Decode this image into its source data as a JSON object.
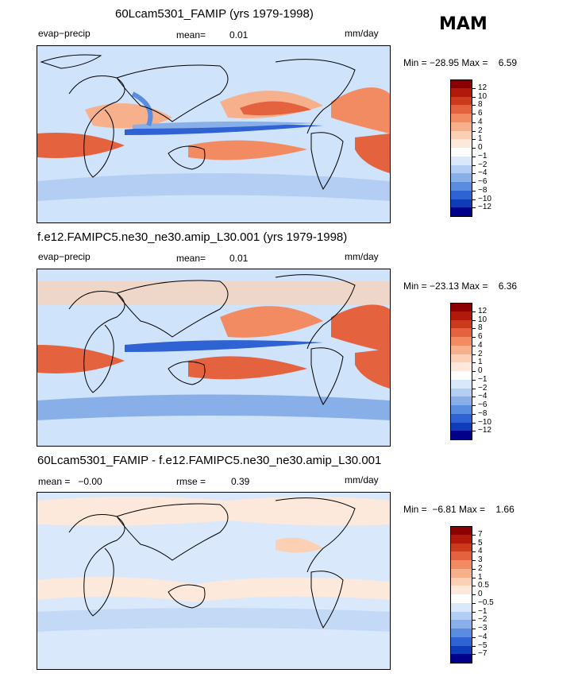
{
  "season": "MAM",
  "panels": [
    {
      "title": "60Lcam5301_FAMIP (yrs 1979-1998)",
      "left_label": "evap−precip",
      "center_label": "mean=",
      "center_value": "0.01",
      "units": "mm/day",
      "min_max": "Min = −28.95 Max =    6.59",
      "colorbar": {
        "ticks": [
          "12",
          "10",
          "8",
          "6",
          "4",
          "2",
          "1",
          "0",
          "−1",
          "−2",
          "−4",
          "−6",
          "−8",
          "−10",
          "−12"
        ],
        "colors": [
          "#8b0000",
          "#b11a0b",
          "#cc3a1e",
          "#e5623f",
          "#f28b62",
          "#f6b08b",
          "#fbd0b4",
          "#fde9db",
          "#ffffff",
          "#d9e8fb",
          "#b4cef3",
          "#89afe9",
          "#5a8ce0",
          "#2f62d2",
          "#0f3cb8",
          "#00008b"
        ]
      }
    },
    {
      "title": "f.e12.FAMIPC5.ne30_ne30.amip_L30.001 (yrs 1979-1998)",
      "left_label": "evap−precip",
      "center_label": "mean=",
      "center_value": "0.01",
      "units": "mm/day",
      "min_max": "Min = −23.13 Max =    6.36",
      "colorbar": {
        "ticks": [
          "12",
          "10",
          "8",
          "6",
          "4",
          "2",
          "1",
          "0",
          "−1",
          "−2",
          "−4",
          "−6",
          "−8",
          "−10",
          "−12"
        ],
        "colors": [
          "#8b0000",
          "#b11a0b",
          "#cc3a1e",
          "#e5623f",
          "#f28b62",
          "#f6b08b",
          "#fbd0b4",
          "#fde9db",
          "#ffffff",
          "#d9e8fb",
          "#b4cef3",
          "#89afe9",
          "#5a8ce0",
          "#2f62d2",
          "#0f3cb8",
          "#00008b"
        ]
      }
    },
    {
      "title": "60Lcam5301_FAMIP - f.e12.FAMIPC5.ne30_ne30.amip_L30.001",
      "left_label": "mean =   −0.00",
      "center_label": "rmse =",
      "center_value": "0.39",
      "units": "mm/day",
      "min_max": "Min =  −6.81 Max =    1.66",
      "colorbar": {
        "ticks": [
          "7",
          "5",
          "4",
          "3",
          "2",
          "1",
          "0.5",
          "0",
          "−0.5",
          "−1",
          "−2",
          "−3",
          "−4",
          "−5",
          "−7"
        ],
        "colors": [
          "#8b0000",
          "#b11a0b",
          "#cc3a1e",
          "#e5623f",
          "#f28b62",
          "#f6b08b",
          "#fbd0b4",
          "#fde9db",
          "#ffffff",
          "#d9e8fb",
          "#b4cef3",
          "#89afe9",
          "#5a8ce0",
          "#2f62d2",
          "#0f3cb8",
          "#00008b"
        ]
      }
    }
  ]
}
